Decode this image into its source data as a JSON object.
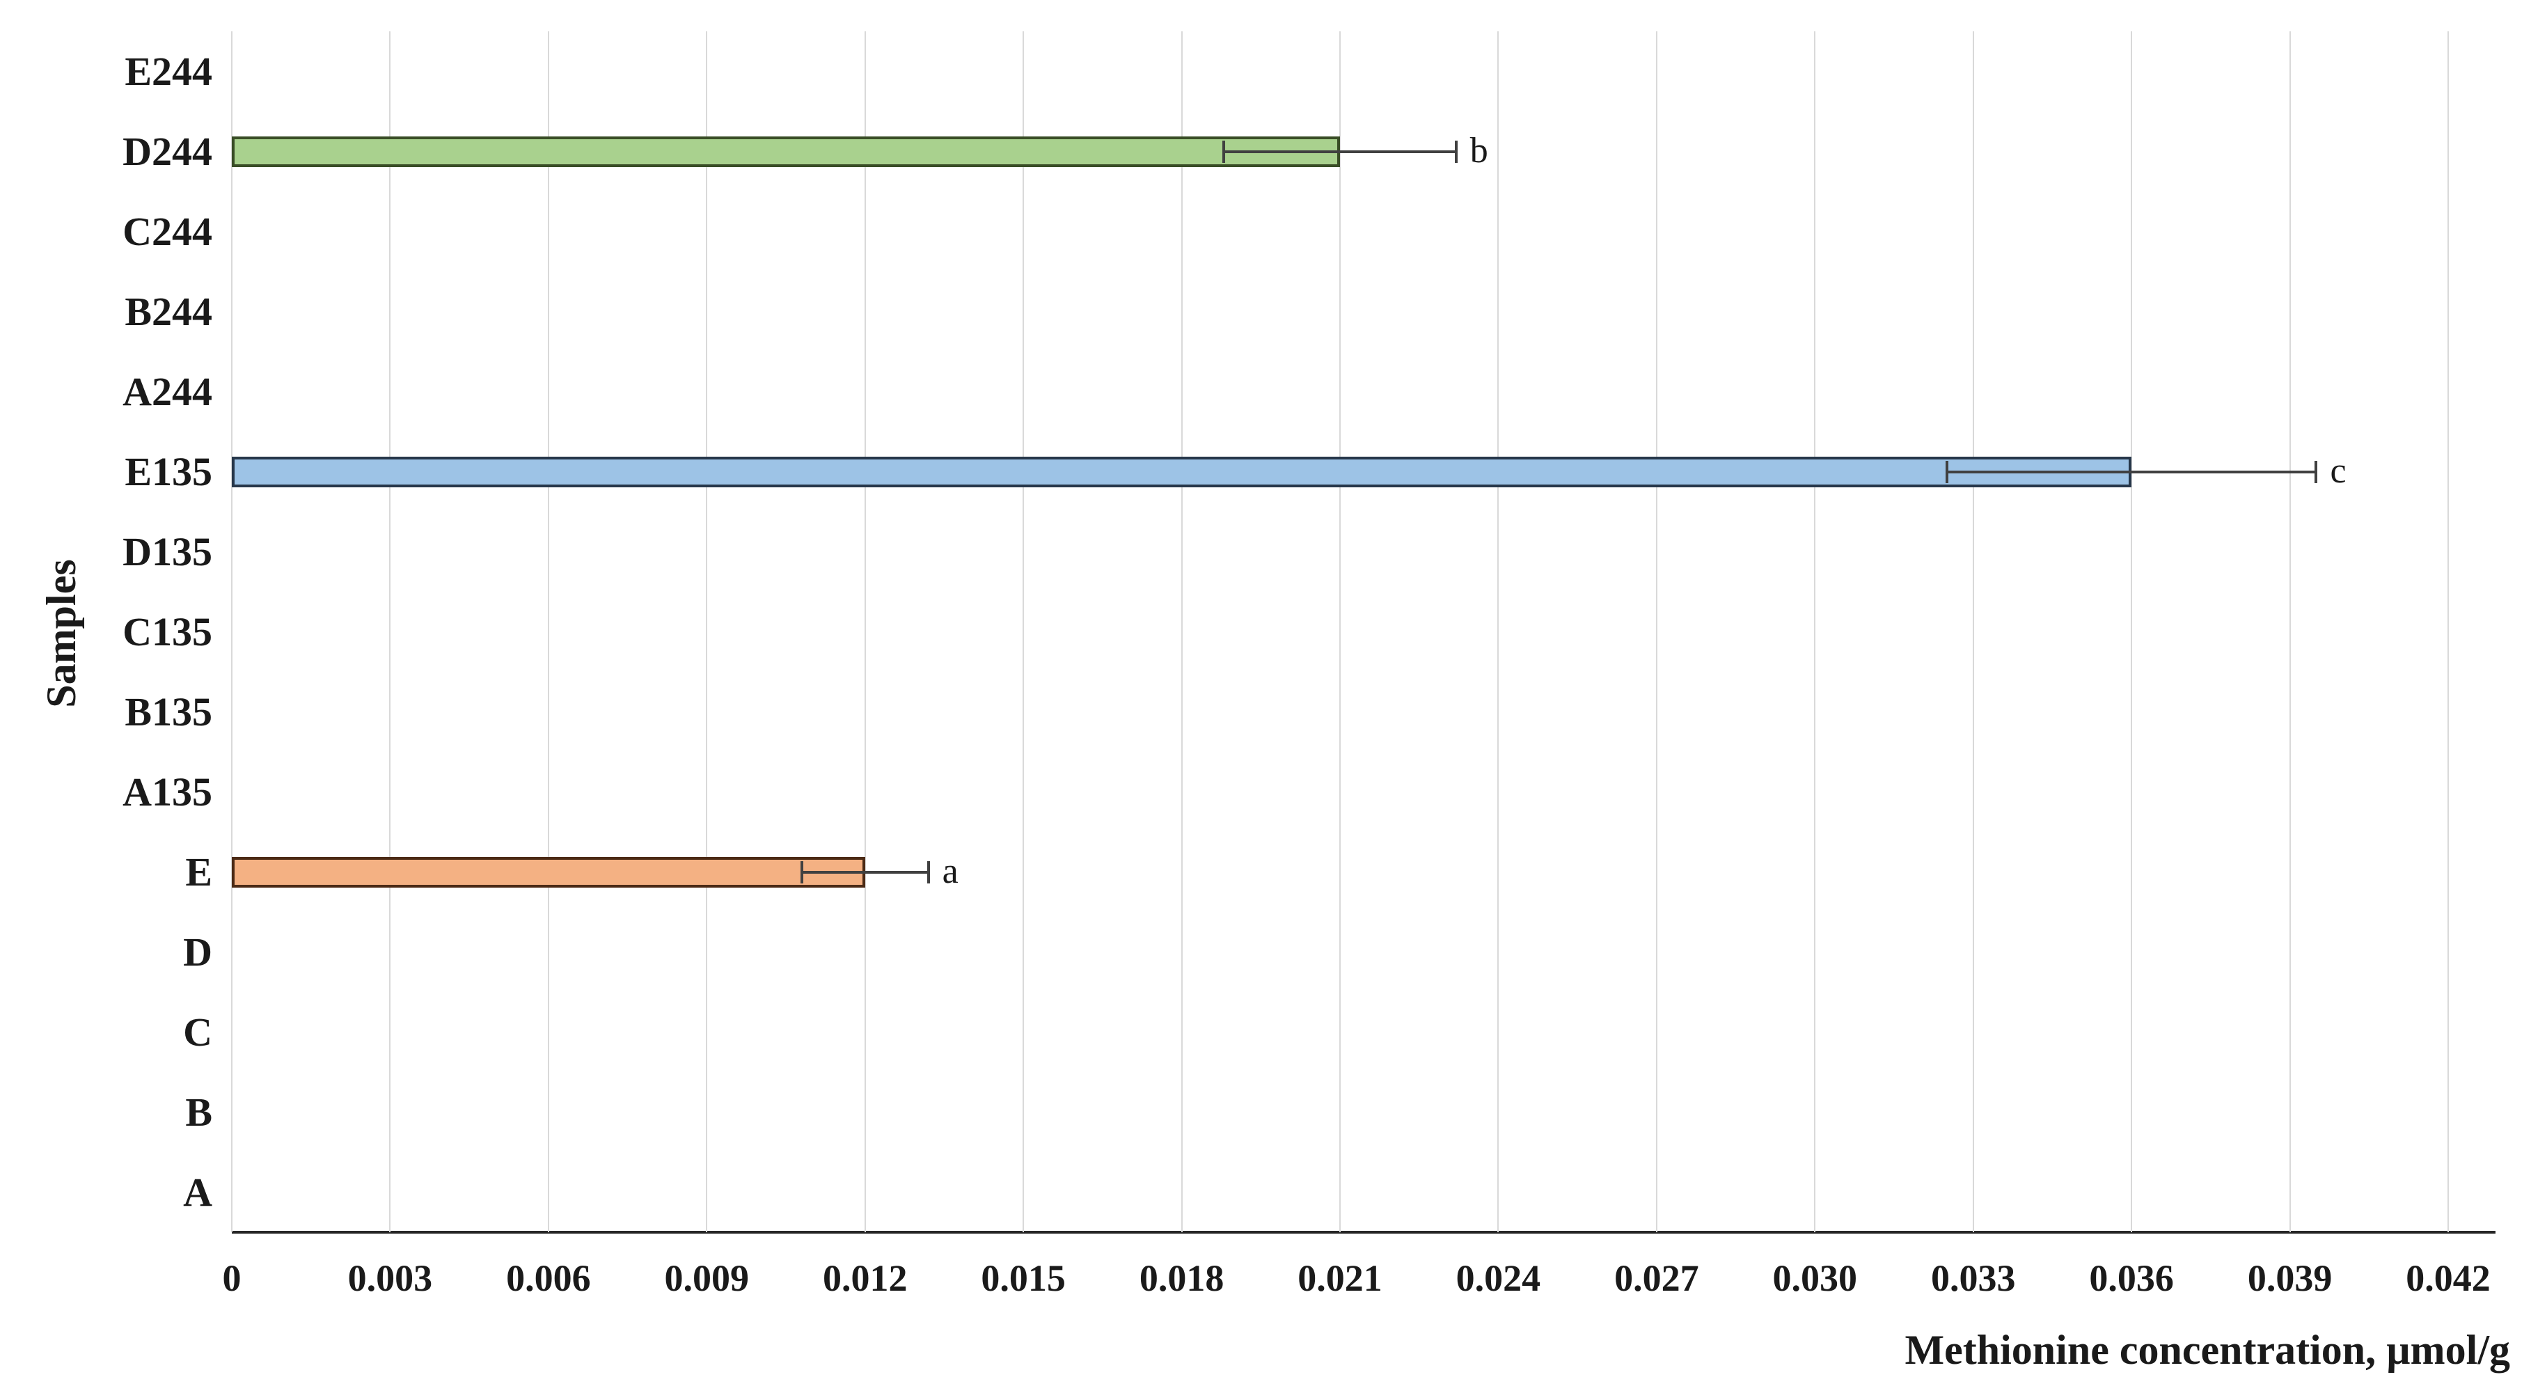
{
  "chart_data": {
    "type": "bar",
    "orientation": "horizontal",
    "title": "",
    "xlabel": "Methionine concentration, µmol/g",
    "ylabel": "Samples",
    "xlim": [
      0,
      0.042
    ],
    "xtick_step": 0.003,
    "xticks": [
      "0",
      "0.003",
      "0.006",
      "0.009",
      "0.012",
      "0.015",
      "0.018",
      "0.021",
      "0.024",
      "0.027",
      "0.030",
      "0.033",
      "0.036",
      "0.039",
      "0.042"
    ],
    "categories_top_to_bottom": [
      "E244",
      "D244",
      "C244",
      "B244",
      "A244",
      "E135",
      "D135",
      "C135",
      "B135",
      "A135",
      "E",
      "D",
      "C",
      "B",
      "A"
    ],
    "grid": true,
    "legend": "none",
    "bars": [
      {
        "category": "E",
        "value": 0.012,
        "error": 0.0012,
        "sig_label": "a",
        "fill": "#f4b183",
        "border": "#4b2a15"
      },
      {
        "category": "E135",
        "value": 0.036,
        "error": 0.0035,
        "sig_label": "c",
        "fill": "#9dc3e6",
        "border": "#27374a"
      },
      {
        "category": "D244",
        "value": 0.021,
        "error": 0.0022,
        "sig_label": "b",
        "fill": "#a9d18e",
        "border": "#394d26"
      }
    ]
  },
  "style": {
    "gridline_color": "#d9d9d9",
    "axis_line_color": "#262626",
    "error_bar_color": "#404040",
    "text_color": "#1a1a1a"
  }
}
